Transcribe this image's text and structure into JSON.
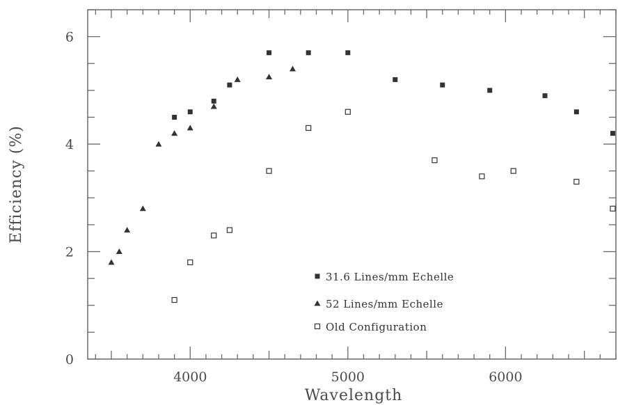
{
  "chart_data": {
    "type": "scatter",
    "title": "",
    "xlabel": "Wavelength",
    "ylabel": "Efficiency (%)",
    "xlim": [
      3350,
      6700
    ],
    "ylim": [
      0,
      6.5
    ],
    "x_ticks": [
      4000,
      5000,
      6000
    ],
    "x_tick_labels": [
      "4000",
      "5000",
      "6000"
    ],
    "y_ticks": [
      0,
      2,
      4,
      6
    ],
    "y_tick_labels": [
      "0",
      "2",
      "4",
      "6"
    ],
    "x_minor_step": 100,
    "x_mid_step": 500,
    "y_minor_step": 0.5,
    "grid": false,
    "legend": "bottom-center",
    "series": [
      {
        "name": "31.6 Lines/mm Echelle",
        "marker": "filled-square",
        "color": "#333333",
        "points": [
          [
            3900,
            4.5
          ],
          [
            4000,
            4.6
          ],
          [
            4150,
            4.8
          ],
          [
            4250,
            5.1
          ],
          [
            4500,
            5.7
          ],
          [
            4750,
            5.7
          ],
          [
            5000,
            5.7
          ],
          [
            5300,
            5.2
          ],
          [
            5600,
            5.1
          ],
          [
            5900,
            5.0
          ],
          [
            6250,
            4.9
          ],
          [
            6450,
            4.6
          ],
          [
            6680,
            4.2
          ]
        ]
      },
      {
        "name": "52 Lines/mm Echelle",
        "marker": "filled-triangle",
        "color": "#333333",
        "points": [
          [
            3500,
            1.8
          ],
          [
            3550,
            2.0
          ],
          [
            3600,
            2.4
          ],
          [
            3700,
            2.8
          ],
          [
            3800,
            4.0
          ],
          [
            3900,
            4.2
          ],
          [
            4000,
            4.3
          ],
          [
            4150,
            4.7
          ],
          [
            4300,
            5.2
          ],
          [
            4500,
            5.25
          ],
          [
            4650,
            5.4
          ]
        ]
      },
      {
        "name": "Old Configuration",
        "marker": "open-square",
        "color": "#333333",
        "points": [
          [
            3900,
            1.1
          ],
          [
            4000,
            1.8
          ],
          [
            4150,
            2.3
          ],
          [
            4250,
            2.4
          ],
          [
            4500,
            3.5
          ],
          [
            4750,
            4.3
          ],
          [
            5000,
            4.6
          ],
          [
            5550,
            3.7
          ],
          [
            5850,
            3.4
          ],
          [
            6050,
            3.5
          ],
          [
            6450,
            3.3
          ],
          [
            6680,
            2.8
          ]
        ]
      }
    ]
  }
}
